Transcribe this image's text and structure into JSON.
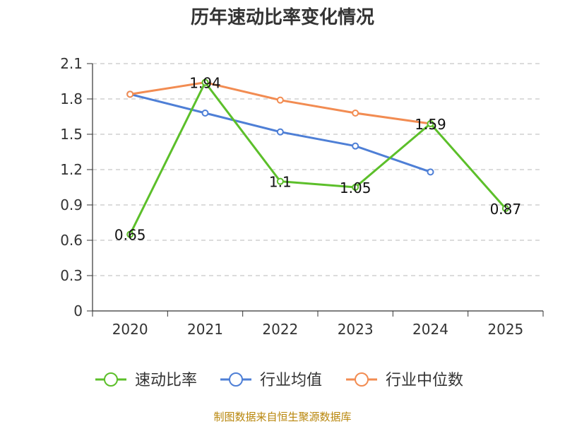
{
  "chart_data": {
    "type": "line",
    "title": "历年速动比率变化情况",
    "categories": [
      "2020",
      "2021",
      "2022",
      "2023",
      "2024",
      "2025"
    ],
    "ylim": [
      0,
      2.1
    ],
    "yticks": [
      "0",
      "0.3",
      "0.6",
      "0.9",
      "1.2",
      "1.5",
      "1.8",
      "2.1"
    ],
    "grid": true,
    "series": [
      {
        "name": "速动比率",
        "color": "#5cbf2a",
        "values": [
          0.65,
          1.94,
          1.1,
          1.05,
          1.59,
          0.87
        ],
        "labels": [
          "0.65",
          "1.94",
          "1.1",
          "1.05",
          "1.59",
          "0.87"
        ]
      },
      {
        "name": "行业均值",
        "color": "#4e7fd6",
        "values": [
          1.84,
          1.68,
          1.52,
          1.4,
          1.18,
          null
        ]
      },
      {
        "name": "行业中位数",
        "color": "#f28c52",
        "values": [
          1.84,
          1.94,
          1.79,
          1.68,
          1.59,
          null
        ]
      }
    ],
    "legend_position": "bottom",
    "source": "制图数据来自恒生聚源数据库"
  }
}
